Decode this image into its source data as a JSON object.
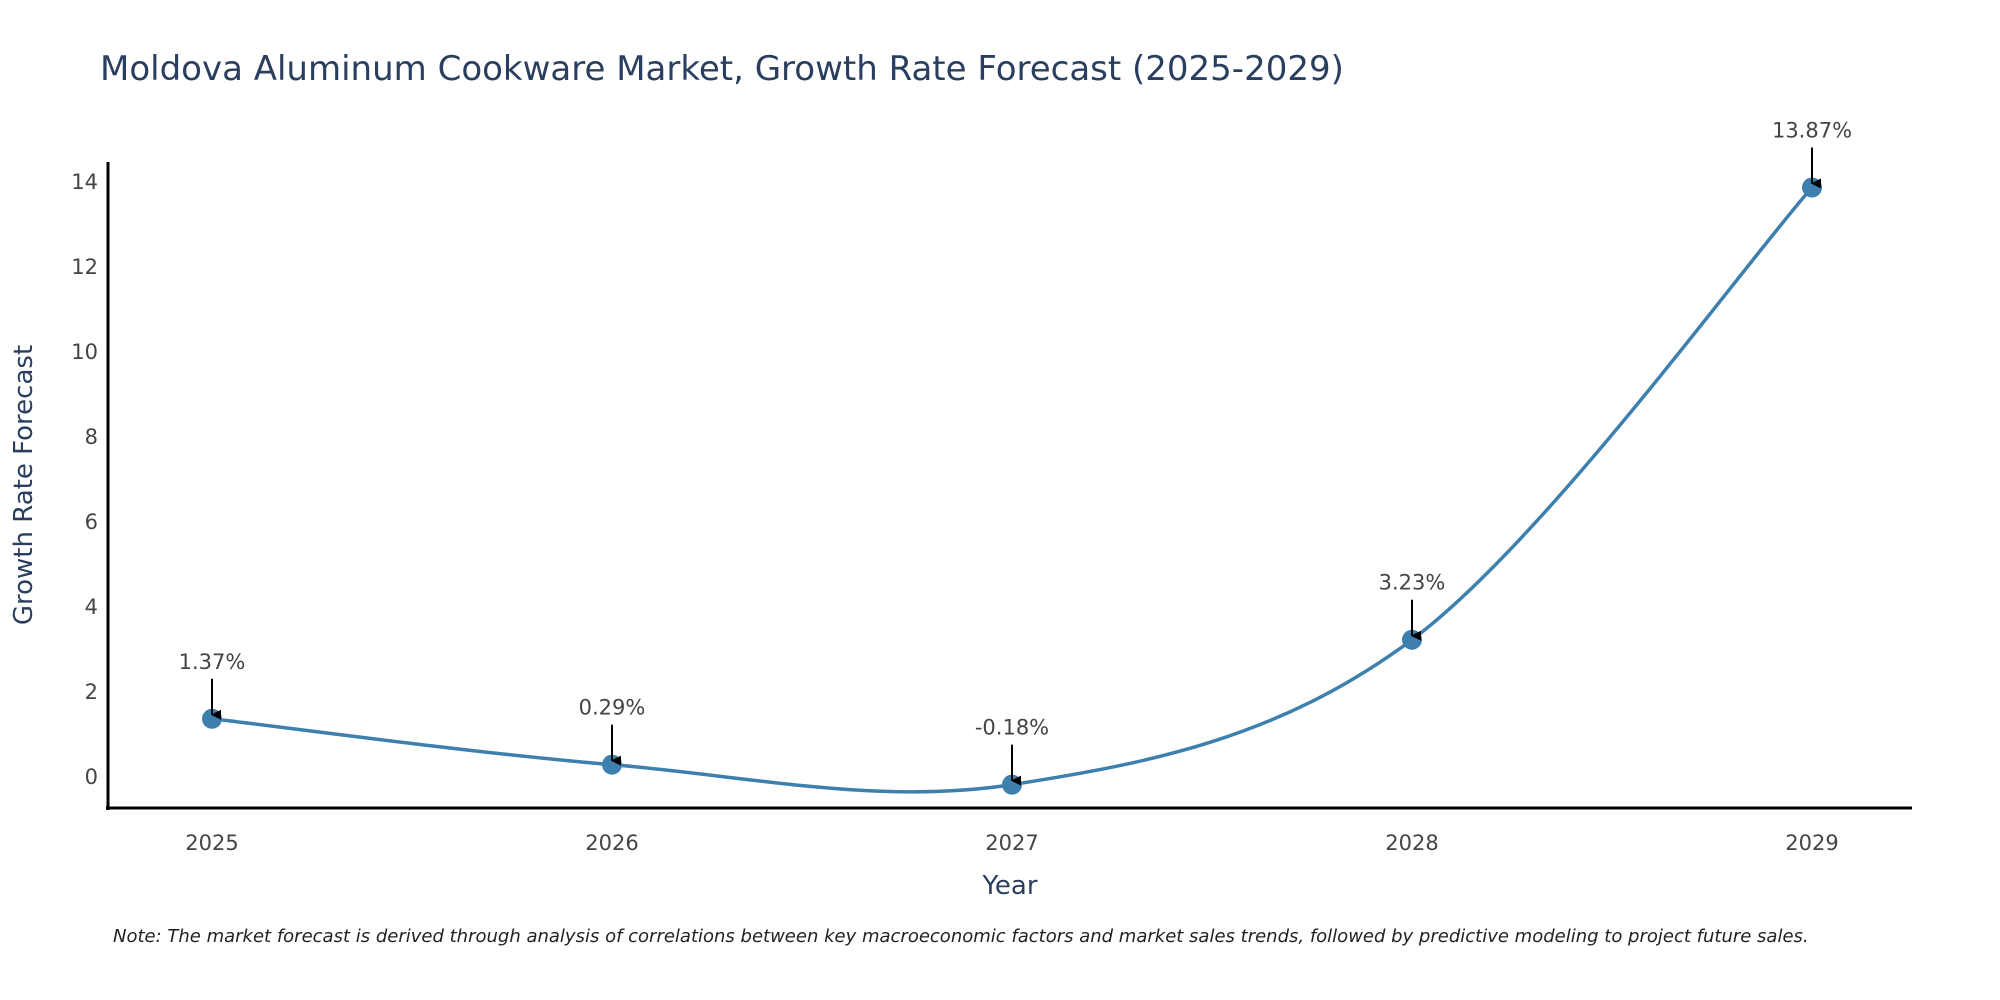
{
  "chart_data": {
    "type": "line",
    "title": "Moldova Aluminum Cookware Market, Growth Rate Forecast (2025-2029)",
    "xlabel": "Year",
    "ylabel": "Growth Rate Forecast",
    "categories": [
      "2025",
      "2026",
      "2027",
      "2028",
      "2029"
    ],
    "series": [
      {
        "name": "Growth Rate Forecast",
        "values": [
          1.37,
          0.29,
          -0.18,
          3.23,
          13.87
        ],
        "labels": [
          "1.37%",
          "0.29%",
          "-0.18%",
          "3.23%",
          "13.87%"
        ],
        "color": "#3d7fad"
      }
    ],
    "ylim": [
      -0.75,
      14.4
    ],
    "yticks": [
      0,
      2,
      4,
      6,
      8,
      10,
      12,
      14
    ],
    "grid": false,
    "note": "Note: The market forecast is derived through analysis of correlations between key macroeconomic factors and market sales trends, followed by predictive modeling to project future sales."
  }
}
